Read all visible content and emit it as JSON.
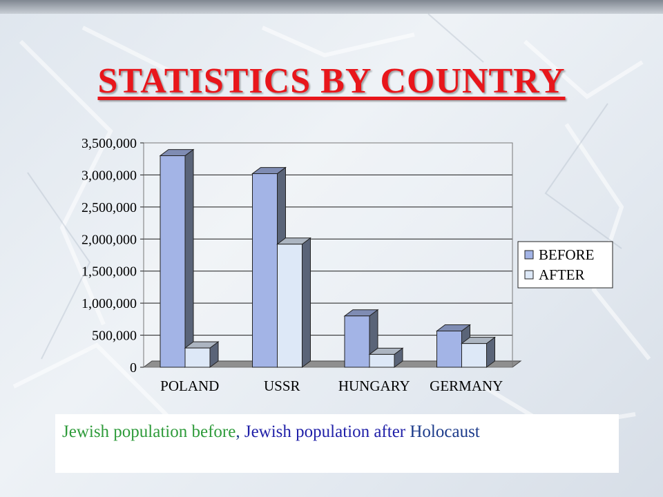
{
  "slide": {
    "title": "STATISTICS BY COUNTRY",
    "caption": {
      "part1": "Jewish population before",
      "comma": ", ",
      "part2": "Jewish population after",
      "part3": " Holocaust",
      "colors": {
        "part1": "#2e9b3a",
        "part2": "#1f1fa8",
        "part3": "#1b3a8a"
      }
    }
  },
  "chart_data": {
    "type": "bar",
    "categories": [
      "POLAND",
      "USSR",
      "HUNGARY",
      "GERMANY"
    ],
    "series": [
      {
        "name": "BEFORE",
        "values": [
          3300000,
          3020000,
          800000,
          565000
        ],
        "color": "#a3b4e6"
      },
      {
        "name": "AFTER",
        "values": [
          300000,
          1920000,
          200000,
          370000
        ],
        "color": "#dde8f7"
      }
    ],
    "ylim": [
      0,
      3500000
    ],
    "yticks": [
      "3,500,000",
      "3,000,000",
      "2,500,000",
      "2,000,000",
      "1,500,000",
      "1,000,000",
      "500,000",
      "0"
    ],
    "ytick_values": [
      3500000,
      3000000,
      2500000,
      2000000,
      1500000,
      1000000,
      500000,
      0
    ],
    "grid": true,
    "legend_position": "right",
    "title": "",
    "xlabel": "",
    "ylabel": ""
  }
}
